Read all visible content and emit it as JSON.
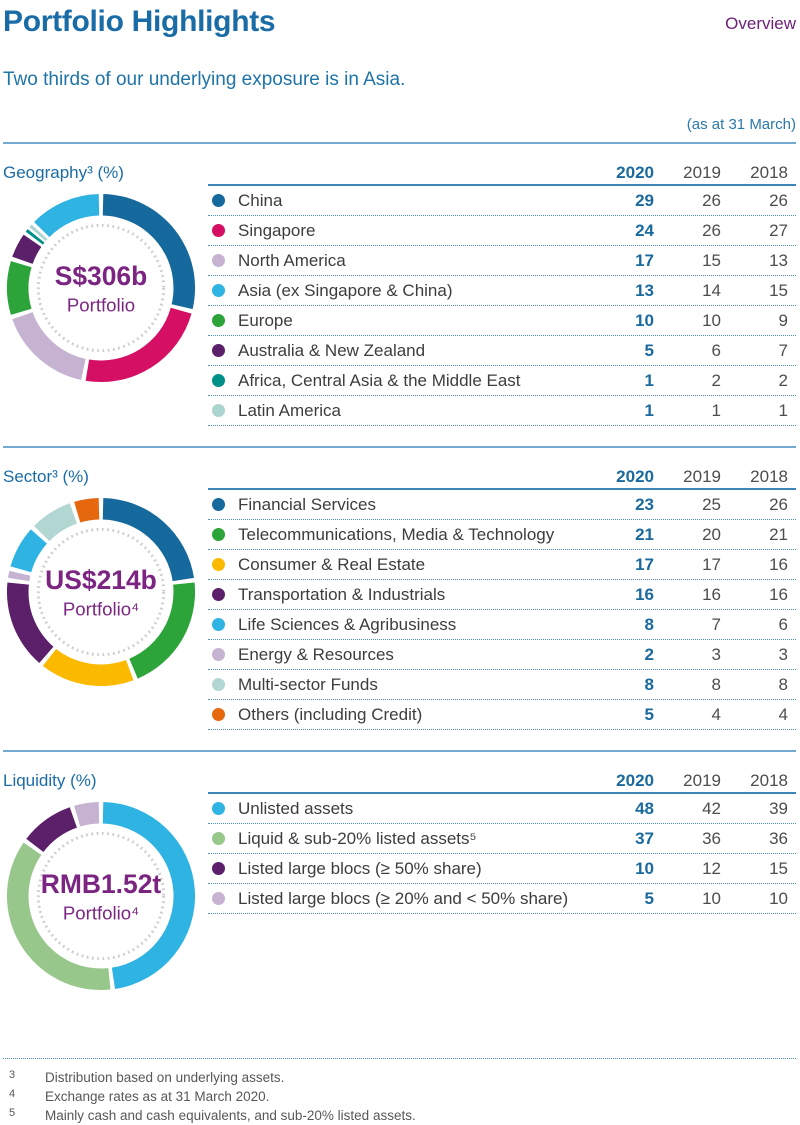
{
  "page": {
    "title": "Portfolio Highlights",
    "page_label": "Overview",
    "subtitle": "Two thirds of our underlying exposure is in Asia.",
    "as_at": "(as at 31 March)"
  },
  "years": [
    "2020",
    "2019",
    "2018"
  ],
  "colors": {
    "heading_blue": "#1a6ca6",
    "current_value_blue": "#1b6a9e",
    "past_value_gray": "#4d4d4d",
    "overview_purple": "#6d2077",
    "donut_center_purple": "#7b2481",
    "divider_blue": "#74a9d0",
    "table_line_blue": "#3f86b8",
    "dotted_line_blue": "#4e92c4"
  },
  "sections": [
    {
      "id": "geography",
      "title": "Geography³ (%)",
      "rows": [
        {
          "label": "China",
          "color": "#16699c",
          "values": [
            29,
            26,
            26
          ]
        },
        {
          "label": "Singapore",
          "color": "#d40f64",
          "values": [
            24,
            26,
            27
          ]
        },
        {
          "label": "North America",
          "color": "#c6b2d1",
          "values": [
            17,
            15,
            13
          ]
        },
        {
          "label": "Asia (ex Singapore & China)",
          "color": "#2fb3e3",
          "values": [
            13,
            14,
            15
          ]
        },
        {
          "label": "Europe",
          "color": "#2ca43a",
          "values": [
            10,
            10,
            9
          ]
        },
        {
          "label": "Australia & New Zealand",
          "color": "#5b2069",
          "values": [
            5,
            6,
            7
          ]
        },
        {
          "label": "Africa, Central Asia & the Middle East",
          "color": "#008f86",
          "values": [
            1,
            2,
            2
          ]
        },
        {
          "label": "Latin America",
          "color": "#abd3d0",
          "values": [
            1,
            1,
            1
          ]
        }
      ]
    },
    {
      "id": "sector",
      "title": "Sector³ (%)",
      "rows": [
        {
          "label": "Financial Services",
          "color": "#16699c",
          "values": [
            23,
            25,
            26
          ]
        },
        {
          "label": "Telecommunications, Media & Technology",
          "color": "#2ca43a",
          "values": [
            21,
            20,
            21
          ]
        },
        {
          "label": "Consumer & Real Estate",
          "color": "#fbba00",
          "values": [
            17,
            17,
            16
          ]
        },
        {
          "label": "Transportation & Industrials",
          "color": "#5b2069",
          "values": [
            16,
            16,
            16
          ]
        },
        {
          "label": "Life Sciences & Agribusiness",
          "color": "#2fb3e3",
          "values": [
            8,
            7,
            6
          ]
        },
        {
          "label": "Energy & Resources",
          "color": "#c6b2d1",
          "values": [
            2,
            3,
            3
          ]
        },
        {
          "label": "Multi-sector Funds",
          "color": "#b2d7d3",
          "values": [
            8,
            8,
            8
          ]
        },
        {
          "label": "Others (including Credit)",
          "color": "#e5680e",
          "values": [
            5,
            4,
            4
          ]
        }
      ]
    },
    {
      "id": "liquidity",
      "title": "Liquidity (%)",
      "rows": [
        {
          "label": "Unlisted assets",
          "color": "#2fb3e3",
          "values": [
            48,
            42,
            39
          ]
        },
        {
          "label": "Liquid & sub-20% listed assets⁵",
          "color": "#97c78b",
          "values": [
            37,
            36,
            36
          ]
        },
        {
          "label": "Listed large blocs (≥ 50% share)",
          "color": "#5b2069",
          "values": [
            10,
            12,
            15
          ]
        },
        {
          "label": "Listed large blocs (≥ 20% and < 50% share)",
          "color": "#c6b2d1",
          "values": [
            5,
            10,
            10
          ]
        }
      ]
    }
  ],
  "chart_data": [
    {
      "type": "donut",
      "section": "Geography (%)",
      "year": "2020",
      "unit": "percent",
      "center_value": "S$306b",
      "center_label": "Portfolio",
      "slices": [
        {
          "label": "China",
          "value": 29,
          "color": "#16699c"
        },
        {
          "label": "Singapore",
          "value": 24,
          "color": "#d40f64"
        },
        {
          "label": "North America",
          "value": 17,
          "color": "#c6b2d1"
        },
        {
          "label": "Europe",
          "value": 10,
          "color": "#2ca43a"
        },
        {
          "label": "Australia & New Zealand",
          "value": 5,
          "color": "#5b2069"
        },
        {
          "label": "Africa, Central Asia & the Middle East",
          "value": 1,
          "color": "#008f86"
        },
        {
          "label": "Latin America",
          "value": 1,
          "color": "#abd3d0"
        },
        {
          "label": "Asia (ex Singapore & China)",
          "value": 13,
          "color": "#2fb3e3"
        }
      ]
    },
    {
      "type": "donut",
      "section": "Sector (%)",
      "year": "2020",
      "unit": "percent",
      "center_value": "US$214b",
      "center_label": "Portfolio⁴",
      "slices": [
        {
          "label": "Financial Services",
          "value": 23,
          "color": "#16699c"
        },
        {
          "label": "Telecommunications, Media & Technology",
          "value": 21,
          "color": "#2ca43a"
        },
        {
          "label": "Consumer & Real Estate",
          "value": 17,
          "color": "#fbba00"
        },
        {
          "label": "Transportation & Industrials",
          "value": 16,
          "color": "#5b2069"
        },
        {
          "label": "Energy & Resources",
          "value": 2,
          "color": "#c6b2d1"
        },
        {
          "label": "Life Sciences & Agribusiness",
          "value": 8,
          "color": "#2fb3e3"
        },
        {
          "label": "Multi-sector Funds",
          "value": 8,
          "color": "#b2d7d3"
        },
        {
          "label": "Others (including Credit)",
          "value": 5,
          "color": "#e5680e"
        }
      ]
    },
    {
      "type": "donut",
      "section": "Liquidity (%)",
      "year": "2020",
      "unit": "percent",
      "center_value": "RMB1.52t",
      "center_label": "Portfolio⁴",
      "slices": [
        {
          "label": "Unlisted assets",
          "value": 48,
          "color": "#2fb3e3"
        },
        {
          "label": "Liquid & sub-20% listed assets",
          "value": 37,
          "color": "#97c78b"
        },
        {
          "label": "Listed large blocs (≥ 50% share)",
          "value": 10,
          "color": "#5b2069"
        },
        {
          "label": "Listed large blocs (≥ 20% and < 50% share)",
          "value": 5,
          "color": "#c6b2d1"
        }
      ]
    }
  ],
  "footnotes": [
    {
      "marker": "3",
      "text": "Distribution based on underlying assets."
    },
    {
      "marker": "4",
      "text": "Exchange rates as at 31 March 2020."
    },
    {
      "marker": "5",
      "text": "Mainly cash and cash equivalents, and sub-20% listed assets."
    }
  ]
}
